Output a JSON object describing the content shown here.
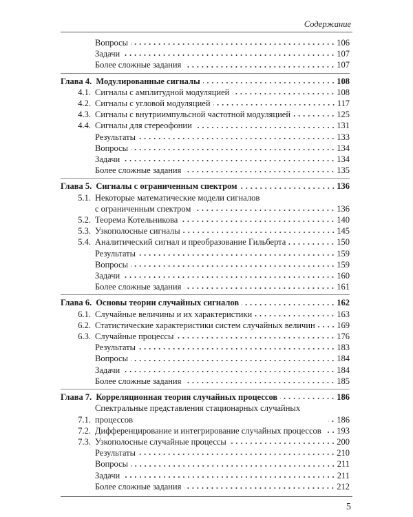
{
  "running_head": "Содержание",
  "folio": "5",
  "entries": [
    {
      "type": "item",
      "num": "",
      "title": "Вопросы",
      "page": "106"
    },
    {
      "type": "item",
      "num": "",
      "title": "Задачи",
      "page": "107"
    },
    {
      "type": "item",
      "num": "",
      "title": "Более сложные задания",
      "page": "107"
    },
    {
      "type": "chapter",
      "num": "Глава 4.",
      "title": "Модулированные сигналы",
      "page": "108"
    },
    {
      "type": "section",
      "num": "4.1.",
      "title": "Сигналы с амплитудной модуляцией",
      "page": "108"
    },
    {
      "type": "section",
      "num": "4.2.",
      "title": "Сигналы с угловой модуляцией",
      "page": "117"
    },
    {
      "type": "section",
      "num": "4.3.",
      "title": "Сигналы с внутриимпульсной частотной модуляцией",
      "page": "125"
    },
    {
      "type": "section",
      "num": "4.4.",
      "title": "Сигналы для стереофонии",
      "page": "131"
    },
    {
      "type": "item",
      "num": "",
      "title": "Результаты",
      "page": "133"
    },
    {
      "type": "item",
      "num": "",
      "title": "Вопросы",
      "page": "134"
    },
    {
      "type": "item",
      "num": "",
      "title": "Задачи",
      "page": "134"
    },
    {
      "type": "item",
      "num": "",
      "title": "Более сложные задания",
      "page": "135"
    },
    {
      "type": "chapter",
      "num": "Глава 5.",
      "title": "Сигналы с ограниченным спектром",
      "page": "136"
    },
    {
      "type": "section2",
      "num": "5.1.",
      "title": "Некоторые математические модели сигналов",
      "title2": "с ограниченным спектром",
      "page": "136"
    },
    {
      "type": "section",
      "num": "5.2.",
      "title": "Теорема Котельникова",
      "page": "140"
    },
    {
      "type": "section",
      "num": "5.3.",
      "title": "Узкополосные сигналы",
      "page": "145"
    },
    {
      "type": "section",
      "num": "5.4.",
      "title": "Аналитический сигнал и преобразование Гильберта",
      "page": "150"
    },
    {
      "type": "item",
      "num": "",
      "title": "Результаты",
      "page": "159"
    },
    {
      "type": "item",
      "num": "",
      "title": "Вопросы",
      "page": "159"
    },
    {
      "type": "item",
      "num": "",
      "title": "Задачи",
      "page": "160"
    },
    {
      "type": "item",
      "num": "",
      "title": "Более сложные задания",
      "page": "161"
    },
    {
      "type": "chapter",
      "num": "Глава 6.",
      "title": "Основы теории случайных сигналов",
      "page": "162"
    },
    {
      "type": "section",
      "num": "6.1.",
      "title": "Случайные величины и их характеристики",
      "page": "163"
    },
    {
      "type": "section",
      "num": "6.2.",
      "title": "Статистические характеристики систем случайных величин",
      "page": "169"
    },
    {
      "type": "section",
      "num": "6.3.",
      "title": "Случайные процессы",
      "page": "176"
    },
    {
      "type": "item",
      "num": "",
      "title": "Результаты",
      "page": "183"
    },
    {
      "type": "item",
      "num": "",
      "title": "Вопросы",
      "page": "184"
    },
    {
      "type": "item",
      "num": "",
      "title": "Задачи",
      "page": "184"
    },
    {
      "type": "item",
      "num": "",
      "title": "Более сложные задания",
      "page": "185"
    },
    {
      "type": "chapter",
      "num": "Глава 7.",
      "title": "Корреляционная теория случайных процессов",
      "page": "186"
    },
    {
      "type": "section",
      "num": "7.1.",
      "title": "Спектральные представления стационарных случайных процессов",
      "page": "186"
    },
    {
      "type": "section",
      "num": "7.2.",
      "title": "Дифференцирование и интегрирование случайных процессов",
      "page": "193"
    },
    {
      "type": "section",
      "num": "7.3.",
      "title": "Узкополосные случайные процессы",
      "page": "200"
    },
    {
      "type": "item",
      "num": "",
      "title": "Результаты",
      "page": "210"
    },
    {
      "type": "item",
      "num": "",
      "title": "Вопросы",
      "page": "211"
    },
    {
      "type": "item",
      "num": "",
      "title": "Задачи",
      "page": "211"
    },
    {
      "type": "item",
      "num": "",
      "title": "Более сложные задания",
      "page": "212"
    }
  ]
}
